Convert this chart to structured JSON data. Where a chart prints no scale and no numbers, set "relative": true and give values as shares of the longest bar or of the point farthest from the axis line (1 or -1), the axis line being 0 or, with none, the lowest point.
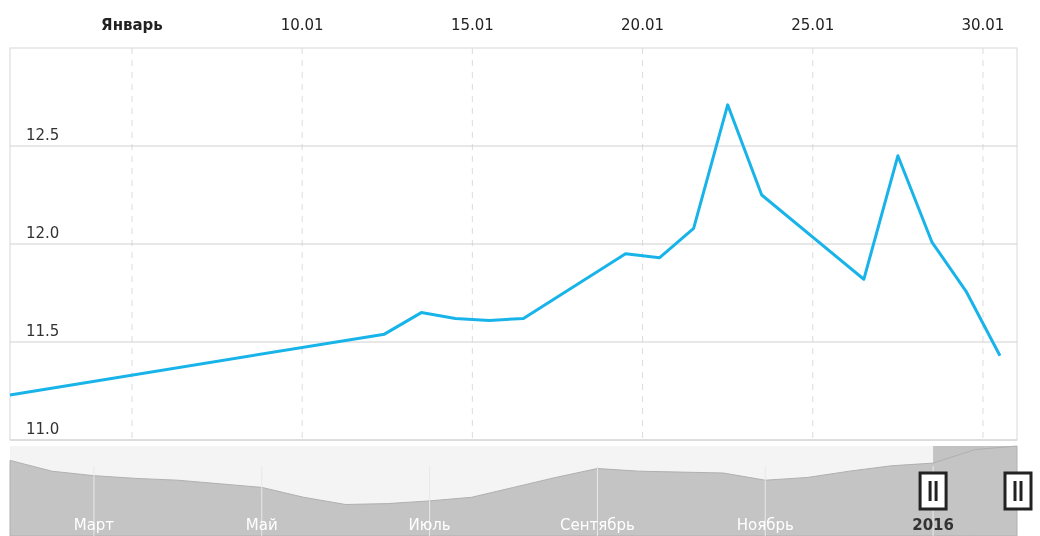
{
  "chart_data": [
    {
      "type": "line",
      "x": [
        "2016-01-01T10:00",
        "2016-01-12T10:00",
        "2016-01-13T12:00",
        "2016-01-14T12:00",
        "2016-01-15T12:00",
        "2016-01-16T12:00",
        "2016-01-19T12:00",
        "2016-01-20T12:00",
        "2016-01-21T12:00",
        "2016-01-22T12:00",
        "2016-01-23T12:00",
        "2016-01-26T12:00",
        "2016-01-27T12:00",
        "2016-01-28T12:00",
        "2016-01-29T12:00",
        "2016-01-30T12:00"
      ],
      "series": [
        {
          "color": "#18b4e9",
          "values": [
            11.23,
            11.54,
            11.65,
            11.62,
            11.61,
            11.62,
            11.95,
            11.93,
            12.08,
            12.71,
            12.25,
            11.82,
            12.45,
            12.01,
            11.76,
            11.43
          ]
        }
      ],
      "xlim": [
        "2016-01-01T10:00",
        "2016-01-31T00:00"
      ],
      "xticks": [
        {
          "value": "2016-01-05",
          "label": "Январь"
        },
        {
          "value": "2016-01-10",
          "label": "10.01"
        },
        {
          "value": "2016-01-15",
          "label": "15.01"
        },
        {
          "value": "2016-01-20",
          "label": "20.01"
        },
        {
          "value": "2016-01-25",
          "label": "25.01"
        },
        {
          "value": "2016-01-30",
          "label": "30.01"
        }
      ],
      "ylim": [
        11,
        13
      ],
      "yticks": [
        {
          "value": 11,
          "label": "11.0"
        },
        {
          "value": 11.5,
          "label": "11.5"
        },
        {
          "value": 12,
          "label": "12.0"
        },
        {
          "value": 12.5,
          "label": "12.5"
        }
      ],
      "grid": true,
      "marker": "none"
    },
    {
      "type": "area",
      "relative": true,
      "categories": [
        null,
        null,
        "Март",
        null,
        null,
        null,
        "Май",
        null,
        null,
        null,
        "Июль",
        null,
        null,
        null,
        "Сентябрь",
        null,
        null,
        null,
        "Ноябрь",
        null,
        null,
        null,
        "2016",
        null,
        null
      ],
      "grid": "x",
      "series": [
        {
          "color": "#c4c4c4",
          "values": [
            0.84,
            0.72,
            0.67,
            0.64,
            0.62,
            0.58,
            0.54,
            0.43,
            0.35,
            0.36,
            0.39,
            0.43,
            0.54,
            0.65,
            0.75,
            0.72,
            0.71,
            0.7,
            0.62,
            0.65,
            0.72,
            0.78,
            0.81,
            0.96,
            1
          ]
        }
      ]
    }
  ]
}
